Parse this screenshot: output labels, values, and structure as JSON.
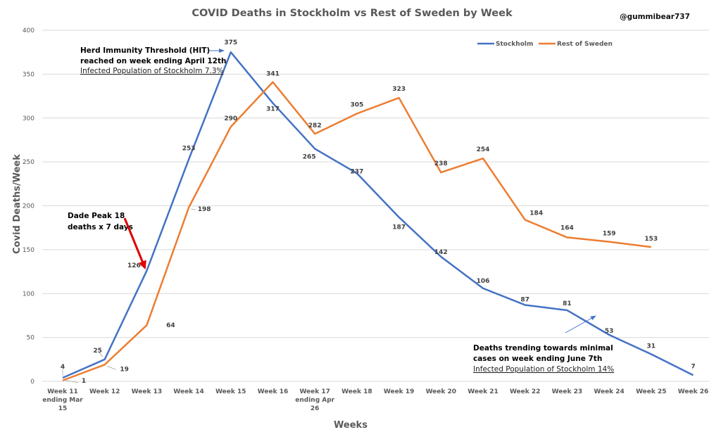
{
  "chart_data": {
    "type": "line",
    "title": "COVID Deaths in Stockholm vs Rest of Sweden by Week",
    "watermark": "@gummibear737",
    "xlabel": "Weeks",
    "ylabel": "Covid Deaths/Week",
    "ylim": [
      0,
      400
    ],
    "yticks": [
      0,
      50,
      100,
      150,
      200,
      250,
      300,
      350,
      400
    ],
    "grid": true,
    "legend_position": "top-right",
    "categories": [
      [
        "Week 11",
        "ending Mar",
        "15"
      ],
      [
        "Week 12"
      ],
      [
        "Week 13"
      ],
      [
        "Week 14"
      ],
      [
        "Week 15"
      ],
      [
        "Week 16"
      ],
      [
        "Week 17",
        "ending Apr",
        "26"
      ],
      [
        "Week 18"
      ],
      [
        "Week 19"
      ],
      [
        "Week 20"
      ],
      [
        "Week 21"
      ],
      [
        "Week 22"
      ],
      [
        "Week 23"
      ],
      [
        "Week 24"
      ],
      [
        "Week 25"
      ],
      [
        "Week 26"
      ]
    ],
    "series": [
      {
        "name": "Stockholm",
        "color": "#4472c4",
        "values": [
          4,
          25,
          126,
          253,
          375,
          317,
          265,
          237,
          187,
          142,
          106,
          87,
          81,
          53,
          31,
          7
        ]
      },
      {
        "name": "Rest of Sweden",
        "color": "#ed7d31",
        "values": [
          1,
          19,
          64,
          198,
          290,
          341,
          282,
          305,
          323,
          238,
          254,
          184,
          164,
          159,
          153,
          null
        ]
      }
    ],
    "annotations": [
      {
        "id": "hit",
        "lines": [
          "Herd Immunity Threshold (HIT)",
          "reached on week ending April 12th"
        ],
        "underlined": "Infected Population of Stockholm 7.3%",
        "arrow_color": "#4472c4"
      },
      {
        "id": "dade",
        "lines": [
          "Dade Peak 18",
          "deaths x 7 days"
        ],
        "arrow_color": "#e00000"
      },
      {
        "id": "trend",
        "lines": [
          "Deaths trending towards minimal",
          "cases on week ending June 7th"
        ],
        "underlined": "Infected Population of Stockholm 14%",
        "arrow_color": "#4472c4"
      }
    ]
  }
}
